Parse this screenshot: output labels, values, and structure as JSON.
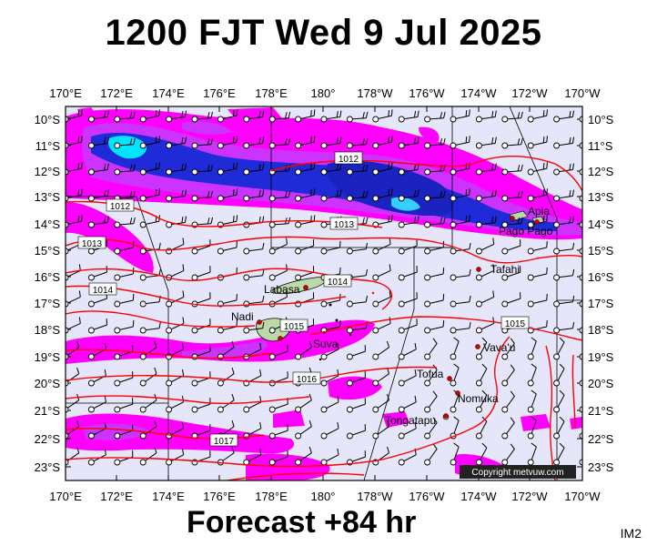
{
  "title": "1200 FJT Wed 9 Jul 2025",
  "footer": "Forecast +84 hr",
  "code": "IM2",
  "copyright": "Copyright metvuw.com",
  "lon_labels": [
    "170°E",
    "172°E",
    "174°E",
    "176°E",
    "178°E",
    "180°",
    "178°W",
    "176°W",
    "174°W",
    "172°W",
    "170°W"
  ],
  "lat_labels": [
    "10°S",
    "11°S",
    "12°S",
    "13°S",
    "14°S",
    "15°S",
    "16°S",
    "17°S",
    "18°S",
    "19°S",
    "20°S",
    "21°S",
    "22°S",
    "23°S"
  ],
  "isobars": [
    {
      "label": "1012"
    },
    {
      "label": "1012"
    },
    {
      "label": "1013"
    },
    {
      "label": "1013"
    },
    {
      "label": "1014"
    },
    {
      "label": "1014"
    },
    {
      "label": "1015"
    },
    {
      "label": "1015"
    },
    {
      "label": "1016"
    },
    {
      "label": "1017"
    }
  ],
  "places": [
    {
      "name": "Apia"
    },
    {
      "name": "Pago Pago"
    },
    {
      "name": "Tafahi"
    },
    {
      "name": "Labasa"
    },
    {
      "name": "Nadi"
    },
    {
      "name": "Suva"
    },
    {
      "name": "Vava'u"
    },
    {
      "name": "Tofua"
    },
    {
      "name": "Nomuka"
    },
    {
      "name": "Tongatapu"
    }
  ],
  "colors": {
    "ocean": "#e6e6fa",
    "rain_light": "#ff00ff",
    "rain_mid": "#cc33ff",
    "rain_heavy": "#1f2bd6",
    "rain_core": "#00e5ff",
    "isobar": "#ff0000",
    "land": "#bcd9a8",
    "border": "#000000"
  }
}
